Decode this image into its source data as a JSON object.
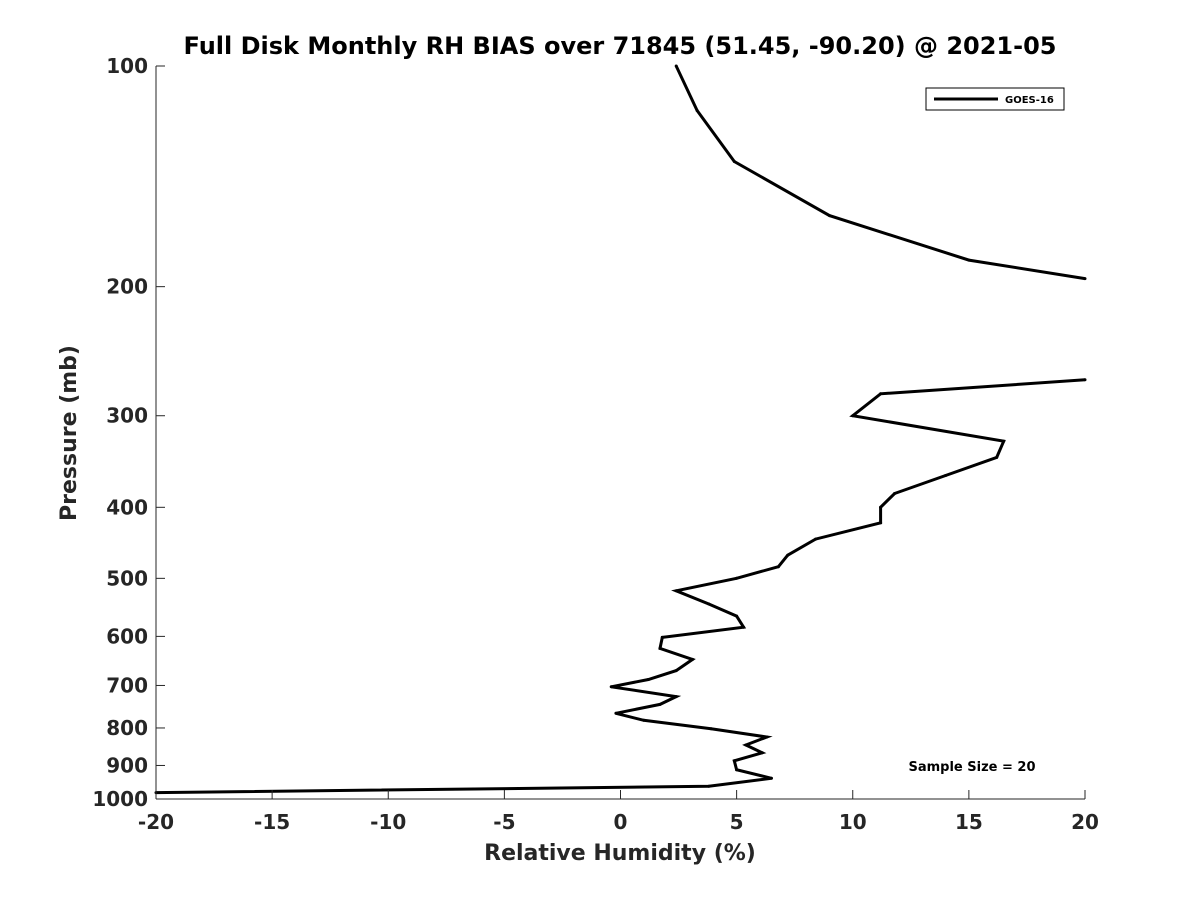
{
  "chart_data": {
    "type": "line",
    "title": "Full Disk Monthly RH BIAS over 71845 (51.45, -90.20) @ 2021-05",
    "xlabel": "Relative Humidity (%)",
    "ylabel": "Pressure (mb)",
    "xlim": [
      -20,
      20
    ],
    "ylim": [
      100,
      1000
    ],
    "y_scale": "log",
    "y_reversed": true,
    "grid": false,
    "x_ticks": [
      -20,
      -15,
      -10,
      -5,
      0,
      5,
      10,
      15,
      20
    ],
    "y_ticks": [
      100,
      200,
      300,
      400,
      500,
      600,
      700,
      800,
      900,
      1000
    ],
    "legend": {
      "position": "top-right",
      "entries": [
        "GOES-16"
      ]
    },
    "annotation": "Sample Size = 20",
    "series": [
      {
        "name": "GOES-16",
        "color": "#000000",
        "segments": [
          [
            {
              "x": 2.4,
              "y": 100
            },
            {
              "x": 3.3,
              "y": 115
            },
            {
              "x": 4.9,
              "y": 135
            },
            {
              "x": 9.0,
              "y": 160
            },
            {
              "x": 15.0,
              "y": 184
            },
            {
              "x": 20.0,
              "y": 195
            }
          ],
          [
            {
              "x": 20.0,
              "y": 268
            },
            {
              "x": 11.2,
              "y": 280
            },
            {
              "x": 10.0,
              "y": 300
            },
            {
              "x": 16.5,
              "y": 325
            },
            {
              "x": 16.2,
              "y": 342
            },
            {
              "x": 14.0,
              "y": 362
            },
            {
              "x": 11.8,
              "y": 383
            },
            {
              "x": 11.2,
              "y": 400
            },
            {
              "x": 11.2,
              "y": 420
            },
            {
              "x": 8.4,
              "y": 442
            },
            {
              "x": 7.2,
              "y": 465
            },
            {
              "x": 6.8,
              "y": 482
            },
            {
              "x": 5.0,
              "y": 500
            },
            {
              "x": 2.4,
              "y": 520
            },
            {
              "x": 3.8,
              "y": 542
            },
            {
              "x": 5.0,
              "y": 563
            },
            {
              "x": 5.3,
              "y": 583
            },
            {
              "x": 1.8,
              "y": 602
            },
            {
              "x": 1.7,
              "y": 623
            },
            {
              "x": 3.1,
              "y": 645
            },
            {
              "x": 2.4,
              "y": 668
            },
            {
              "x": 1.2,
              "y": 687
            },
            {
              "x": -0.4,
              "y": 703
            },
            {
              "x": 2.4,
              "y": 725
            },
            {
              "x": 1.7,
              "y": 743
            },
            {
              "x": -0.2,
              "y": 764
            },
            {
              "x": 1.0,
              "y": 781
            },
            {
              "x": 3.9,
              "y": 802
            },
            {
              "x": 6.3,
              "y": 823
            },
            {
              "x": 5.4,
              "y": 844
            },
            {
              "x": 6.1,
              "y": 865
            },
            {
              "x": 4.9,
              "y": 887
            },
            {
              "x": 5.0,
              "y": 912
            },
            {
              "x": 6.5,
              "y": 937
            },
            {
              "x": 3.8,
              "y": 961
            },
            {
              "x": -20.0,
              "y": 980
            }
          ]
        ]
      }
    ]
  }
}
